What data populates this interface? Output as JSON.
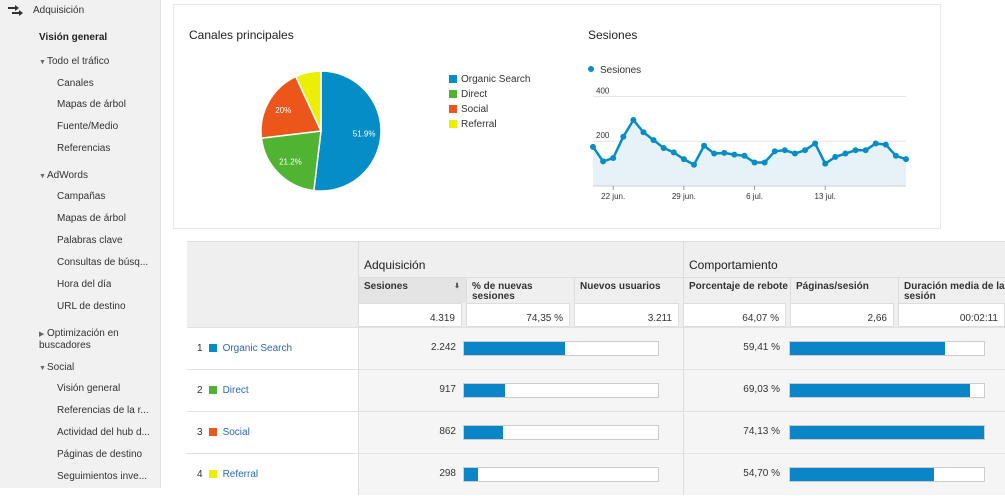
{
  "sidebar": {
    "section_title": "Adquisición",
    "items": [
      {
        "label": "Visión general",
        "level": 1,
        "active": true
      },
      {
        "label": "Todo el tráfico",
        "level": 1,
        "expanded": true
      },
      {
        "label": "Canales",
        "level": 2
      },
      {
        "label": "Mapas de árbol",
        "level": 2
      },
      {
        "label": "Fuente/Medio",
        "level": 2
      },
      {
        "label": "Referencias",
        "level": 2
      },
      {
        "label": "AdWords",
        "level": 1,
        "expanded": true
      },
      {
        "label": "Campañas",
        "level": 2
      },
      {
        "label": "Mapas de árbol",
        "level": 2
      },
      {
        "label": "Palabras clave",
        "level": 2
      },
      {
        "label": "Consultas de búsq...",
        "level": 2
      },
      {
        "label": "Hora del día",
        "level": 2
      },
      {
        "label": "URL de destino",
        "level": 2
      },
      {
        "label": "Optimización en buscadores",
        "level": 1,
        "expanded": false
      },
      {
        "label": "Social",
        "level": 1,
        "expanded": true
      },
      {
        "label": "Visión general",
        "level": 2
      },
      {
        "label": "Referencias de la r...",
        "level": 2
      },
      {
        "label": "Actividad del hub d...",
        "level": 2
      },
      {
        "label": "Páginas de destino",
        "level": 2
      },
      {
        "label": "Seguimientos inve...",
        "level": 2
      }
    ]
  },
  "channels_card": {
    "title": "Canales principales",
    "legend": [
      "Organic Search",
      "Direct",
      "Social",
      "Referral"
    ]
  },
  "sessions_card": {
    "title": "Sesiones",
    "legend": "Sesiones"
  },
  "chart_data": [
    {
      "type": "pie",
      "title": "Canales principales",
      "labels": [
        "Organic Search",
        "Direct",
        "Social",
        "Referral"
      ],
      "values": [
        51.9,
        21.2,
        20.0,
        6.9
      ],
      "slice_labels": [
        "51.9%",
        "21.2%",
        "20%",
        ""
      ],
      "colors": [
        "#058dc7",
        "#50b432",
        "#ed561b",
        "#edef00"
      ]
    },
    {
      "type": "area",
      "title": "Sesiones",
      "series": [
        {
          "name": "Sesiones",
          "values": [
            175,
            110,
            125,
            220,
            295,
            240,
            205,
            170,
            150,
            120,
            95,
            180,
            145,
            148,
            140,
            135,
            105,
            105,
            155,
            160,
            145,
            160,
            190,
            100,
            130,
            145,
            160,
            160,
            190,
            185,
            135,
            120
          ]
        }
      ],
      "x_ticks": [
        "22 jun.",
        "29 jun.",
        "6 jul.",
        "13 jul."
      ],
      "y_ticks": [
        "400",
        "200"
      ],
      "ylim": [
        0,
        420
      ],
      "color": "#058dc7"
    }
  ],
  "table": {
    "groups": [
      "Adquisición",
      "Comportamiento"
    ],
    "columns": [
      "Sesiones",
      "% de nuevas sesiones",
      "Nuevos usuarios",
      "Porcentaje de rebote",
      "Páginas/sesión",
      "Duración media de la sesión"
    ],
    "totals": [
      "4.319",
      "74,35 %",
      "3.211",
      "64,07 %",
      "2,66",
      "00:02:11"
    ],
    "rows": [
      {
        "rank": "1",
        "name": "Organic Search",
        "color": "#058dc7",
        "sessions": "2.242",
        "sessions_share": 0.52,
        "bounce": "59,41 %",
        "bounce_share": 0.8
      },
      {
        "rank": "2",
        "name": "Direct",
        "color": "#50b432",
        "sessions": "917",
        "sessions_share": 0.21,
        "bounce": "69,03 %",
        "bounce_share": 0.93
      },
      {
        "rank": "3",
        "name": "Social",
        "color": "#ed561b",
        "sessions": "862",
        "sessions_share": 0.2,
        "bounce": "74,13 %",
        "bounce_share": 1.0
      },
      {
        "rank": "4",
        "name": "Referral",
        "color": "#edef00",
        "sessions": "298",
        "sessions_share": 0.07,
        "bounce": "54,70 %",
        "bounce_share": 0.74
      }
    ]
  },
  "colors": {
    "accent": "#058dc7",
    "bar": "#0a85c8",
    "link": "#2a68c2"
  }
}
